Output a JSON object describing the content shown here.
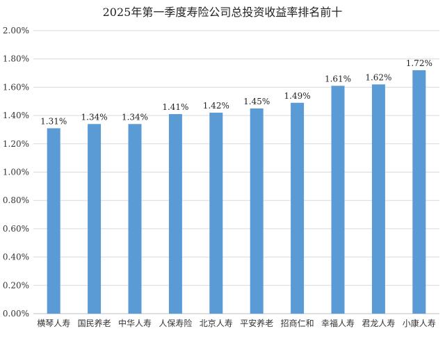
{
  "chart_data": {
    "type": "bar",
    "title": "2025年第一季度寿险公司总投资收益率排名前十",
    "xlabel": "",
    "ylabel": "",
    "categories": [
      "横琴人寿",
      "国民养老",
      "中华人寿",
      "人保寿险",
      "北京人寿",
      "平安养老",
      "招商仁和",
      "幸福人寿",
      "君龙人寿",
      "小康人寿"
    ],
    "values": [
      1.31,
      1.34,
      1.34,
      1.41,
      1.42,
      1.45,
      1.49,
      1.61,
      1.62,
      1.72
    ],
    "data_labels": [
      "1.31%",
      "1.34%",
      "1.34%",
      "1.41%",
      "1.42%",
      "1.45%",
      "1.49%",
      "1.61%",
      "1.62%",
      "1.72%"
    ],
    "yticks": [
      "0.00%",
      "0.20%",
      "0.40%",
      "0.60%",
      "0.80%",
      "1.00%",
      "1.20%",
      "1.40%",
      "1.60%",
      "1.80%",
      "2.00%"
    ],
    "ylim": [
      0,
      2.0
    ],
    "grid": true,
    "legend": "none",
    "bar_color": "#5b9bd5",
    "grid_color": "#d9d9d9"
  }
}
